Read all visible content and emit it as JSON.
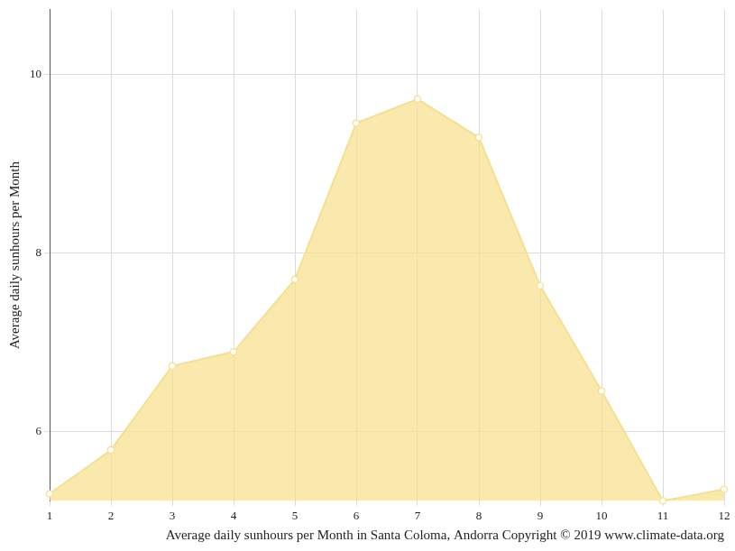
{
  "chart_data": {
    "type": "area",
    "x_label": "Average daily sunhours per Month in Santa Coloma, Andorra Copyright © 2019 www.climate-data.org",
    "y_label": "Average daily sunhours per Month",
    "x": [
      1,
      2,
      3,
      4,
      5,
      6,
      7,
      8,
      9,
      10,
      11,
      12
    ],
    "values": [
      5.3,
      5.79,
      6.73,
      6.89,
      7.7,
      9.45,
      9.72,
      9.29,
      7.63,
      6.45,
      5.22,
      5.35
    ],
    "color": "#f7e08a",
    "marker": "circle",
    "xlim": [
      1,
      12
    ],
    "xticks": [
      1,
      2,
      3,
      4,
      5,
      6,
      7,
      8,
      9,
      10,
      11,
      12
    ],
    "ylim": [
      5.22,
      10.72
    ],
    "yticks": [
      6,
      8,
      10
    ],
    "grid": true
  }
}
